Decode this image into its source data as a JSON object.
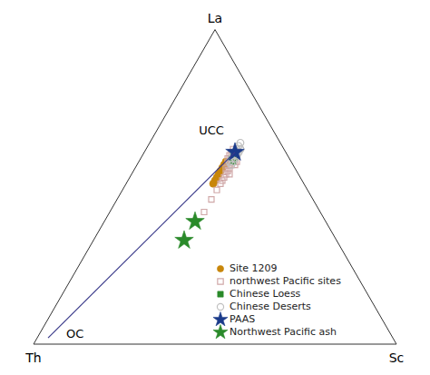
{
  "chart_data": {
    "type": "ternary",
    "axis_labels": [
      "Th",
      "La",
      "Sc"
    ],
    "legend": "lower right",
    "series": [
      {
        "name": "Site 1209",
        "color": "#c8860a",
        "marker": "circle",
        "values": [
          [
            0.18,
            0.58,
            0.24
          ],
          [
            0.19,
            0.57,
            0.24
          ],
          [
            0.2,
            0.56,
            0.24
          ],
          [
            0.21,
            0.55,
            0.24
          ],
          [
            0.22,
            0.54,
            0.24
          ],
          [
            0.23,
            0.53,
            0.24
          ],
          [
            0.24,
            0.52,
            0.24
          ],
          [
            0.25,
            0.51,
            0.24
          ]
        ]
      },
      {
        "name": "northwest Pacific sites",
        "color": "#d0a8a8",
        "marker": "square-open",
        "values": [
          [
            0.14,
            0.62,
            0.24
          ],
          [
            0.15,
            0.61,
            0.24
          ],
          [
            0.15,
            0.6,
            0.25
          ],
          [
            0.16,
            0.6,
            0.24
          ],
          [
            0.16,
            0.59,
            0.25
          ],
          [
            0.17,
            0.59,
            0.24
          ],
          [
            0.17,
            0.58,
            0.25
          ],
          [
            0.18,
            0.57,
            0.25
          ],
          [
            0.18,
            0.56,
            0.26
          ],
          [
            0.19,
            0.56,
            0.25
          ],
          [
            0.19,
            0.55,
            0.26
          ],
          [
            0.2,
            0.54,
            0.26
          ],
          [
            0.21,
            0.53,
            0.26
          ],
          [
            0.22,
            0.52,
            0.26
          ],
          [
            0.23,
            0.51,
            0.26
          ],
          [
            0.25,
            0.49,
            0.26
          ],
          [
            0.28,
            0.46,
            0.26
          ],
          [
            0.32,
            0.42,
            0.26
          ],
          [
            0.36,
            0.39,
            0.25
          ],
          [
            0.17,
            0.57,
            0.26
          ],
          [
            0.19,
            0.54,
            0.27
          ],
          [
            0.15,
            0.58,
            0.27
          ],
          [
            0.16,
            0.57,
            0.27
          ]
        ]
      },
      {
        "name": "Chinese Loess",
        "color": "#2a8a2a",
        "marker": "square",
        "values": [
          [
            0.15,
            0.6,
            0.25
          ],
          [
            0.15,
            0.6,
            0.25
          ],
          [
            0.15,
            0.59,
            0.26
          ],
          [
            0.16,
            0.59,
            0.25
          ],
          [
            0.16,
            0.58,
            0.26
          ],
          [
            0.16,
            0.58,
            0.26
          ]
        ]
      },
      {
        "name": "Chinese Deserts",
        "color": "#c0c0c0",
        "marker": "circle-open",
        "values": [
          [
            0.11,
            0.64,
            0.25
          ],
          [
            0.12,
            0.63,
            0.25
          ],
          [
            0.12,
            0.62,
            0.26
          ],
          [
            0.13,
            0.62,
            0.25
          ],
          [
            0.13,
            0.61,
            0.26
          ],
          [
            0.14,
            0.61,
            0.25
          ],
          [
            0.14,
            0.6,
            0.26
          ],
          [
            0.15,
            0.6,
            0.25
          ],
          [
            0.15,
            0.59,
            0.26
          ],
          [
            0.16,
            0.59,
            0.25
          ],
          [
            0.16,
            0.58,
            0.26
          ],
          [
            0.17,
            0.58,
            0.25
          ],
          [
            0.17,
            0.57,
            0.26
          ],
          [
            0.12,
            0.62,
            0.26
          ],
          [
            0.13,
            0.61,
            0.26
          ],
          [
            0.14,
            0.6,
            0.26
          ],
          [
            0.15,
            0.59,
            0.26
          ],
          [
            0.13,
            0.62,
            0.25
          ],
          [
            0.14,
            0.61,
            0.25
          ],
          [
            0.15,
            0.6,
            0.25
          ]
        ]
      },
      {
        "name": "PAAS",
        "color": "#1a3a8a",
        "marker": "star",
        "values": [
          [
            0.14,
            0.61,
            0.25
          ]
        ]
      },
      {
        "name": "Northwest Pacific ash",
        "color": "#2a8a2a",
        "marker": "star",
        "values": [
          [
            0.36,
            0.39,
            0.25
          ],
          [
            0.42,
            0.33,
            0.25
          ]
        ]
      },
      {
        "type": "line",
        "color": "#3a3a8a",
        "line_style": "solid",
        "values": [
          [
            0.14,
            0.61,
            0.25
          ],
          [
            0.95,
            0.02,
            0.03
          ]
        ]
      }
    ],
    "annotations": [
      {
        "text": "OC",
        "at": [
          0.92,
          0.02,
          0.06
        ]
      },
      {
        "text": "UCC",
        "at": [
          0.14,
          0.62,
          0.24
        ]
      }
    ]
  }
}
